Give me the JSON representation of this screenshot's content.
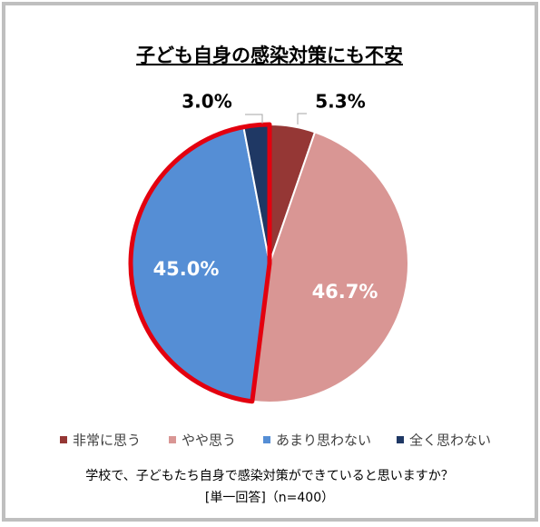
{
  "chart_data": {
    "type": "pie",
    "title": "子ども自身の感染対策にも不安",
    "categories": [
      "非常に思う",
      "やや思う",
      "あまり思わない",
      "全く思わない"
    ],
    "values": [
      5.3,
      46.7,
      45.0,
      3.0
    ],
    "value_labels": [
      "5.3%",
      "46.7%",
      "45.0%",
      "3.0%"
    ],
    "colors": [
      "#953735",
      "#d99694",
      "#558ed5",
      "#1f3864"
    ],
    "note": [
      "学校で、子どもたち自身で感染対策ができていると思いますか？",
      "[単一回答]（n=400）"
    ]
  }
}
